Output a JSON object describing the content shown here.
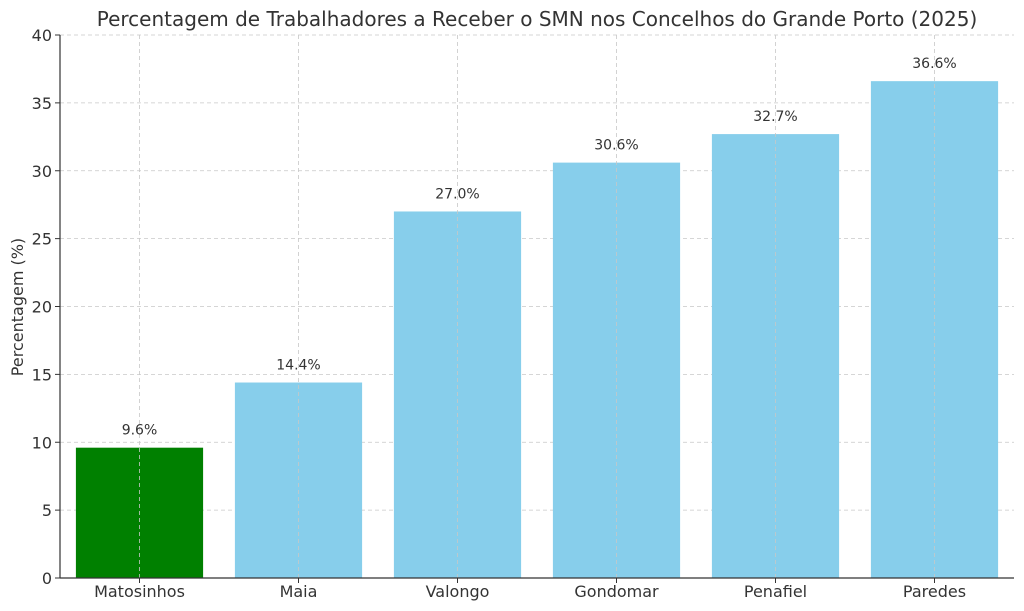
{
  "chart_data": {
    "type": "bar",
    "title": "Percentagem de Trabalhadores a Receber o SMN nos Concelhos do Grande Porto (2025)",
    "xlabel": "",
    "ylabel": "Percentagem (%)",
    "categories": [
      "Matosinhos",
      "Maia",
      "Valongo",
      "Gondomar",
      "Penafiel",
      "Paredes"
    ],
    "values": [
      9.6,
      14.4,
      27.0,
      30.6,
      32.7,
      36.6
    ],
    "data_labels": [
      "9.6%",
      "14.4%",
      "27.0%",
      "30.6%",
      "32.7%",
      "36.6%"
    ],
    "colors": [
      "#008000",
      "#87ceeb",
      "#87ceeb",
      "#87ceeb",
      "#87ceeb",
      "#87ceeb"
    ],
    "ylim": [
      0,
      40
    ],
    "yticks": [
      0,
      5,
      10,
      15,
      20,
      25,
      30,
      35,
      40
    ],
    "grid": true
  }
}
